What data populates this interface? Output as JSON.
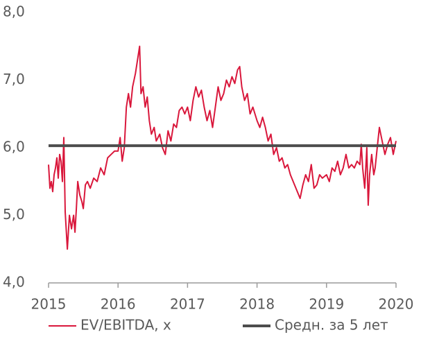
{
  "chart_data": {
    "type": "line",
    "xlim": [
      2015,
      2020
    ],
    "xticks": [
      2015,
      2016,
      2017,
      2018,
      2019,
      2020
    ],
    "ylim": [
      4,
      8
    ],
    "yticks": [
      {
        "value": 4,
        "label": "4,0"
      },
      {
        "value": 5,
        "label": "5,0"
      },
      {
        "value": 6,
        "label": "6,0"
      },
      {
        "value": 7,
        "label": "7,0"
      },
      {
        "value": 8,
        "label": "8,0"
      }
    ],
    "legend": "bottom",
    "series": [
      {
        "name": "EV/EBITDA, x",
        "color": "#d9173b",
        "width": 2,
        "x": [
          2015.0,
          2015.02,
          2015.04,
          2015.06,
          2015.08,
          2015.1,
          2015.12,
          2015.14,
          2015.16,
          2015.18,
          2015.2,
          2015.22,
          2015.24,
          2015.27,
          2015.3,
          2015.33,
          2015.36,
          2015.38,
          2015.4,
          2015.42,
          2015.45,
          2015.48,
          2015.5,
          2015.53,
          2015.56,
          2015.6,
          2015.65,
          2015.7,
          2015.75,
          2015.8,
          2015.85,
          2015.9,
          2015.95,
          2016.0,
          2016.03,
          2016.06,
          2016.09,
          2016.12,
          2016.15,
          2016.18,
          2016.21,
          2016.25,
          2016.28,
          2016.31,
          2016.33,
          2016.36,
          2016.39,
          2016.42,
          2016.45,
          2016.48,
          2016.52,
          2016.55,
          2016.6,
          2016.64,
          2016.68,
          2016.72,
          2016.76,
          2016.8,
          2016.84,
          2016.88,
          2016.92,
          2016.96,
          2017.0,
          2017.04,
          2017.08,
          2017.12,
          2017.16,
          2017.2,
          2017.24,
          2017.28,
          2017.32,
          2017.36,
          2017.4,
          2017.44,
          2017.48,
          2017.52,
          2017.56,
          2017.6,
          2017.64,
          2017.68,
          2017.72,
          2017.75,
          2017.78,
          2017.82,
          2017.86,
          2017.9,
          2017.94,
          2018.0,
          2018.04,
          2018.08,
          2018.12,
          2018.16,
          2018.2,
          2018.24,
          2018.28,
          2018.32,
          2018.36,
          2018.4,
          2018.44,
          2018.48,
          2018.52,
          2018.56,
          2018.6,
          2018.62,
          2018.66,
          2018.7,
          2018.74,
          2018.78,
          2018.82,
          2018.86,
          2018.9,
          2018.94,
          2019.0,
          2019.04,
          2019.08,
          2019.12,
          2019.16,
          2019.2,
          2019.24,
          2019.28,
          2019.32,
          2019.36,
          2019.4,
          2019.44,
          2019.48,
          2019.5,
          2019.52,
          2019.55,
          2019.58,
          2019.6,
          2019.62,
          2019.65,
          2019.68,
          2019.7,
          2019.73,
          2019.76,
          2019.8,
          2019.84,
          2019.88,
          2019.92,
          2019.96,
          2020.0
        ],
        "values": [
          5.75,
          5.4,
          5.5,
          5.35,
          5.6,
          5.7,
          5.85,
          5.55,
          5.9,
          5.8,
          5.5,
          6.15,
          5.05,
          4.5,
          5.0,
          4.8,
          5.0,
          4.75,
          5.1,
          5.5,
          5.3,
          5.2,
          5.1,
          5.45,
          5.5,
          5.4,
          5.55,
          5.5,
          5.7,
          5.6,
          5.85,
          5.9,
          5.95,
          5.95,
          6.15,
          5.8,
          6.0,
          6.6,
          6.8,
          6.6,
          6.9,
          7.1,
          7.3,
          7.5,
          6.8,
          6.9,
          6.6,
          6.75,
          6.4,
          6.2,
          6.3,
          6.1,
          6.2,
          6.0,
          5.9,
          6.25,
          6.1,
          6.35,
          6.3,
          6.55,
          6.6,
          6.5,
          6.6,
          6.4,
          6.7,
          6.9,
          6.75,
          6.85,
          6.6,
          6.4,
          6.55,
          6.3,
          6.6,
          6.9,
          6.7,
          6.8,
          7.0,
          6.9,
          7.05,
          6.95,
          7.15,
          7.2,
          6.9,
          6.7,
          6.8,
          6.5,
          6.6,
          6.4,
          6.3,
          6.45,
          6.3,
          6.1,
          6.2,
          5.9,
          6.0,
          5.8,
          5.85,
          5.7,
          5.75,
          5.6,
          5.5,
          5.4,
          5.3,
          5.25,
          5.45,
          5.6,
          5.5,
          5.75,
          5.4,
          5.45,
          5.6,
          5.55,
          5.6,
          5.5,
          5.7,
          5.65,
          5.8,
          5.6,
          5.7,
          5.9,
          5.7,
          5.75,
          5.7,
          5.8,
          5.75,
          6.05,
          5.7,
          5.4,
          6.0,
          5.15,
          5.6,
          5.9,
          5.6,
          5.7,
          6.0,
          6.3,
          6.1,
          5.9,
          6.05,
          6.15,
          5.9,
          6.1
        ]
      },
      {
        "name": "Средн. за 5 лет",
        "color": "#4d4d4d",
        "width": 4,
        "x": [
          2015,
          2020
        ],
        "values": [
          6.03,
          6.03
        ]
      }
    ]
  }
}
